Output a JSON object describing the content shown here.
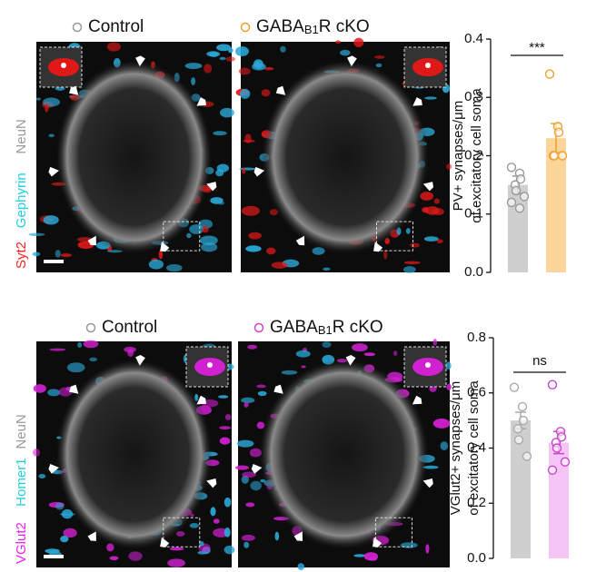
{
  "image_panels": [
    {
      "legend": [
        {
          "name": "Control",
          "color": "#999999"
        },
        {
          "name": "GABA",
          "sub": "B1",
          "suffix": "R cKO",
          "color": "#f0a030"
        }
      ],
      "channels": [
        {
          "text": "Syt2",
          "color": "#ff2020"
        },
        {
          "text": "Gephyrin",
          "color": "#22d0e0"
        },
        {
          "text": "NeuN",
          "color": "#9a9a9a"
        }
      ],
      "signal_color": "#e01818"
    },
    {
      "legend": [
        {
          "name": "Control",
          "color": "#999999"
        },
        {
          "name": "GABA",
          "sub": "B1",
          "suffix": "R cKO",
          "color": "#cc44cc"
        }
      ],
      "channels": [
        {
          "text": "VGlut2",
          "color": "#ee22ee"
        },
        {
          "text": "Homer1",
          "color": "#22d0e0"
        },
        {
          "text": "NeuN",
          "color": "#9a9a9a"
        }
      ],
      "signal_color": "#d020d0"
    }
  ],
  "chart_data": [
    {
      "type": "bar",
      "ylabel": [
        "PV+ synapses/μm",
        "of excitatory cell soma"
      ],
      "categories": [
        null,
        null
      ],
      "values": [
        0.15,
        0.23
      ],
      "errors": [
        0.015,
        0.025
      ],
      "colors": [
        "#cfcfcf",
        "#fbd59a"
      ],
      "point_colors": [
        "#999999",
        "#f0a030"
      ],
      "points": [
        [
          0.18,
          0.17,
          0.16,
          0.15,
          0.14,
          0.13,
          0.12,
          0.11
        ],
        [
          0.34,
          0.25,
          0.24,
          0.2,
          0.2,
          0.2
        ]
      ],
      "annotation": "***",
      "ylim": [
        0,
        0.4
      ],
      "yticks": [
        {
          "value": 0,
          "label": "0.0"
        },
        0.1,
        0.2,
        0.3,
        0.4
      ]
    },
    {
      "type": "bar",
      "ylabel": [
        "VGlut2+ synapses/μm",
        "of excitatory cell soma"
      ],
      "categories": [
        null,
        null
      ],
      "values": [
        0.5,
        0.42
      ],
      "errors": [
        0.03,
        0.04
      ],
      "colors": [
        "#cfcfcf",
        "#f5c6f5"
      ],
      "point_colors": [
        "#aaaaaa",
        "#cc44cc"
      ],
      "points": [
        [
          0.62,
          0.55,
          0.5,
          0.47,
          0.43,
          0.37
        ],
        [
          0.63,
          0.46,
          0.44,
          0.42,
          0.4,
          0.35,
          0.32
        ]
      ],
      "annotation": "ns",
      "ylim": [
        0,
        0.8
      ],
      "yticks": [
        {
          "value": 0,
          "label": "0.0"
        },
        0.2,
        0.4,
        0.6,
        0.8
      ]
    }
  ]
}
